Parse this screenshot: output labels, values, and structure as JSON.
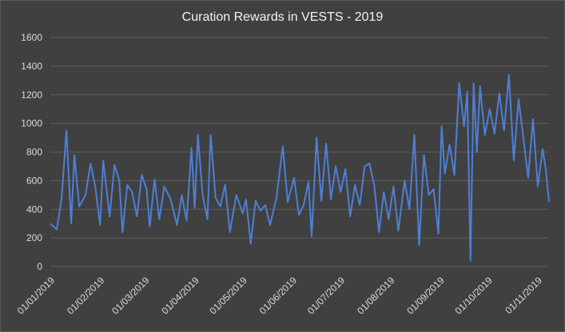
{
  "chart_data": {
    "type": "line",
    "title": "Curation Rewards in VESTS - 2019",
    "xlabel": "",
    "ylabel": "",
    "ylim": [
      0,
      1600
    ],
    "yticks": [
      0,
      200,
      400,
      600,
      800,
      1000,
      1200,
      1400,
      1600
    ],
    "xlim": [
      "2019-01-01",
      "2019-11-08"
    ],
    "xticks": [
      "01/01/2019",
      "01/02/2019",
      "01/03/2019",
      "01/04/2019",
      "01/05/2019",
      "01/06/2019",
      "01/07/2019",
      "01/08/2019",
      "01/09/2019",
      "01/10/2019",
      "01/11/2019"
    ],
    "grid": "horizontal",
    "legend": "none",
    "colors": {
      "series": "#4d7fd6",
      "background": "#404040",
      "grid": "#5c5c5c",
      "text": "#d9d9d9"
    },
    "series": [
      {
        "name": "",
        "points": [
          [
            "2019-01-01",
            300
          ],
          [
            "2019-01-05",
            260
          ],
          [
            "2019-01-08",
            470
          ],
          [
            "2019-01-11",
            950
          ],
          [
            "2019-01-14",
            300
          ],
          [
            "2019-01-16",
            780
          ],
          [
            "2019-01-19",
            420
          ],
          [
            "2019-01-23",
            500
          ],
          [
            "2019-01-26",
            720
          ],
          [
            "2019-01-29",
            560
          ],
          [
            "2019-02-01",
            290
          ],
          [
            "2019-02-03",
            740
          ],
          [
            "2019-02-07",
            350
          ],
          [
            "2019-02-10",
            710
          ],
          [
            "2019-02-13",
            600
          ],
          [
            "2019-02-15",
            240
          ],
          [
            "2019-02-18",
            570
          ],
          [
            "2019-02-21",
            520
          ],
          [
            "2019-02-24",
            350
          ],
          [
            "2019-02-27",
            640
          ],
          [
            "2019-03-02",
            540
          ],
          [
            "2019-03-04",
            280
          ],
          [
            "2019-03-07",
            610
          ],
          [
            "2019-03-10",
            330
          ],
          [
            "2019-03-13",
            560
          ],
          [
            "2019-03-17",
            470
          ],
          [
            "2019-03-21",
            290
          ],
          [
            "2019-03-24",
            500
          ],
          [
            "2019-03-27",
            320
          ],
          [
            "2019-03-30",
            830
          ],
          [
            "2019-04-01",
            410
          ],
          [
            "2019-04-03",
            920
          ],
          [
            "2019-04-06",
            500
          ],
          [
            "2019-04-09",
            330
          ],
          [
            "2019-04-11",
            920
          ],
          [
            "2019-04-14",
            480
          ],
          [
            "2019-04-17",
            420
          ],
          [
            "2019-04-20",
            570
          ],
          [
            "2019-04-23",
            240
          ],
          [
            "2019-04-27",
            500
          ],
          [
            "2019-05-01",
            370
          ],
          [
            "2019-05-03",
            470
          ],
          [
            "2019-05-06",
            160
          ],
          [
            "2019-05-09",
            460
          ],
          [
            "2019-05-12",
            390
          ],
          [
            "2019-05-15",
            430
          ],
          [
            "2019-05-18",
            290
          ],
          [
            "2019-05-22",
            480
          ],
          [
            "2019-05-26",
            840
          ],
          [
            "2019-05-29",
            450
          ],
          [
            "2019-06-02",
            620
          ],
          [
            "2019-06-05",
            360
          ],
          [
            "2019-06-08",
            430
          ],
          [
            "2019-06-11",
            590
          ],
          [
            "2019-06-13",
            210
          ],
          [
            "2019-06-16",
            900
          ],
          [
            "2019-06-19",
            460
          ],
          [
            "2019-06-22",
            860
          ],
          [
            "2019-06-25",
            470
          ],
          [
            "2019-06-28",
            700
          ],
          [
            "2019-07-01",
            520
          ],
          [
            "2019-07-04",
            680
          ],
          [
            "2019-07-07",
            350
          ],
          [
            "2019-07-10",
            570
          ],
          [
            "2019-07-13",
            430
          ],
          [
            "2019-07-16",
            700
          ],
          [
            "2019-07-19",
            720
          ],
          [
            "2019-07-22",
            570
          ],
          [
            "2019-07-25",
            240
          ],
          [
            "2019-07-28",
            520
          ],
          [
            "2019-07-31",
            330
          ],
          [
            "2019-08-03",
            560
          ],
          [
            "2019-08-06",
            250
          ],
          [
            "2019-08-10",
            600
          ],
          [
            "2019-08-13",
            400
          ],
          [
            "2019-08-16",
            920
          ],
          [
            "2019-08-19",
            150
          ],
          [
            "2019-08-22",
            780
          ],
          [
            "2019-08-25",
            500
          ],
          [
            "2019-08-28",
            540
          ],
          [
            "2019-08-31",
            230
          ],
          [
            "2019-09-02",
            980
          ],
          [
            "2019-09-04",
            650
          ],
          [
            "2019-09-07",
            850
          ],
          [
            "2019-09-10",
            640
          ],
          [
            "2019-09-13",
            1280
          ],
          [
            "2019-09-16",
            980
          ],
          [
            "2019-09-18",
            1220
          ],
          [
            "2019-09-20",
            40
          ],
          [
            "2019-09-22",
            1280
          ],
          [
            "2019-09-24",
            800
          ],
          [
            "2019-09-26",
            1260
          ],
          [
            "2019-09-29",
            920
          ],
          [
            "2019-10-02",
            1100
          ],
          [
            "2019-10-05",
            930
          ],
          [
            "2019-10-08",
            1210
          ],
          [
            "2019-10-11",
            950
          ],
          [
            "2019-10-14",
            1340
          ],
          [
            "2019-10-17",
            740
          ],
          [
            "2019-10-20",
            1170
          ],
          [
            "2019-10-23",
            900
          ],
          [
            "2019-10-26",
            620
          ],
          [
            "2019-10-29",
            1030
          ],
          [
            "2019-11-01",
            560
          ],
          [
            "2019-11-04",
            820
          ],
          [
            "2019-11-06",
            680
          ],
          [
            "2019-11-08",
            450
          ]
        ]
      }
    ]
  }
}
